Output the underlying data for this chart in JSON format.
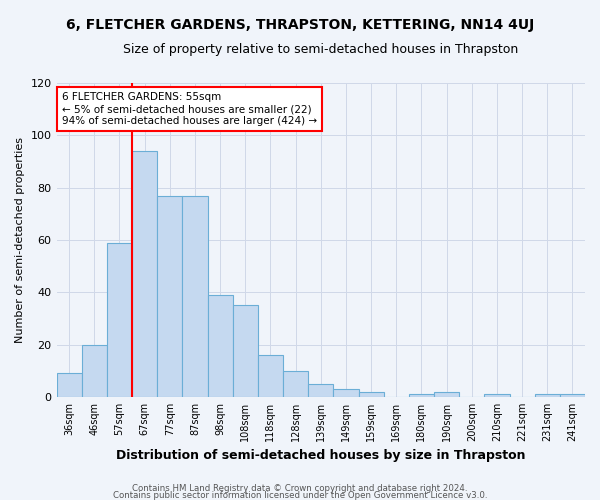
{
  "title": "6, FLETCHER GARDENS, THRAPSTON, KETTERING, NN14 4UJ",
  "subtitle": "Size of property relative to semi-detached houses in Thrapston",
  "xlabel": "Distribution of semi-detached houses by size in Thrapston",
  "ylabel": "Number of semi-detached properties",
  "footnote1": "Contains HM Land Registry data © Crown copyright and database right 2024.",
  "footnote2": "Contains public sector information licensed under the Open Government Licence v3.0.",
  "annotation_title": "6 FLETCHER GARDENS: 55sqm",
  "annotation_line2": "← 5% of semi-detached houses are smaller (22)",
  "annotation_line3": "94% of semi-detached houses are larger (424) →",
  "bar_labels": [
    "36sqm",
    "46sqm",
    "57sqm",
    "67sqm",
    "77sqm",
    "87sqm",
    "98sqm",
    "108sqm",
    "118sqm",
    "128sqm",
    "139sqm",
    "149sqm",
    "159sqm",
    "169sqm",
    "180sqm",
    "190sqm",
    "200sqm",
    "210sqm",
    "221sqm",
    "231sqm",
    "241sqm"
  ],
  "bar_values": [
    9,
    20,
    59,
    94,
    77,
    77,
    39,
    35,
    16,
    10,
    5,
    3,
    2,
    0,
    1,
    2,
    0,
    1,
    0,
    1,
    1
  ],
  "bar_color": "#c5d9f0",
  "bar_edge_color": "#6baed6",
  "red_line_x": 2.5,
  "ylim": [
    0,
    120
  ],
  "yticks": [
    0,
    20,
    40,
    60,
    80,
    100,
    120
  ],
  "background_color": "#f0f4fa",
  "grid_color": "#d0d8e8",
  "title_fontsize": 10,
  "subtitle_fontsize": 9,
  "xlabel_fontsize": 9,
  "ylabel_fontsize": 8
}
